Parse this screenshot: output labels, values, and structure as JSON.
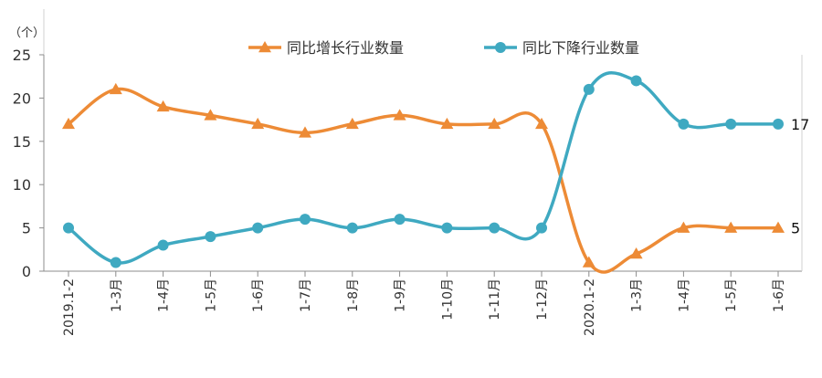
{
  "chart_data": {
    "type": "line",
    "unit_label": "（个）",
    "categories": [
      "2019.1-2",
      "1-3月",
      "1-4月",
      "1-5月",
      "1-6月",
      "1-7月",
      "1-8月",
      "1-9月",
      "1-10月",
      "1-11月",
      "1-12月",
      "2020.1-2",
      "1-3月",
      "1-4月",
      "1-5月",
      "1-6月"
    ],
    "series": [
      {
        "name": "同比增长行业数量",
        "color": "#ED8B36",
        "marker": "triangle",
        "values": [
          17,
          21,
          19,
          18,
          17,
          16,
          17,
          18,
          17,
          17,
          17,
          1,
          2,
          5,
          5,
          5
        ]
      },
      {
        "name": "同比下降行业数量",
        "color": "#3FA9C1",
        "marker": "circle",
        "values": [
          5,
          1,
          3,
          4,
          5,
          6,
          5,
          6,
          5,
          5,
          5,
          21,
          22,
          17,
          17,
          17
        ]
      }
    ],
    "end_labels": [
      "5",
      "17"
    ],
    "ylim": [
      0,
      25
    ],
    "yticks": [
      "0",
      "5",
      "10",
      "15",
      "20",
      "25"
    ],
    "grid": false,
    "legend_position": "top-center"
  }
}
